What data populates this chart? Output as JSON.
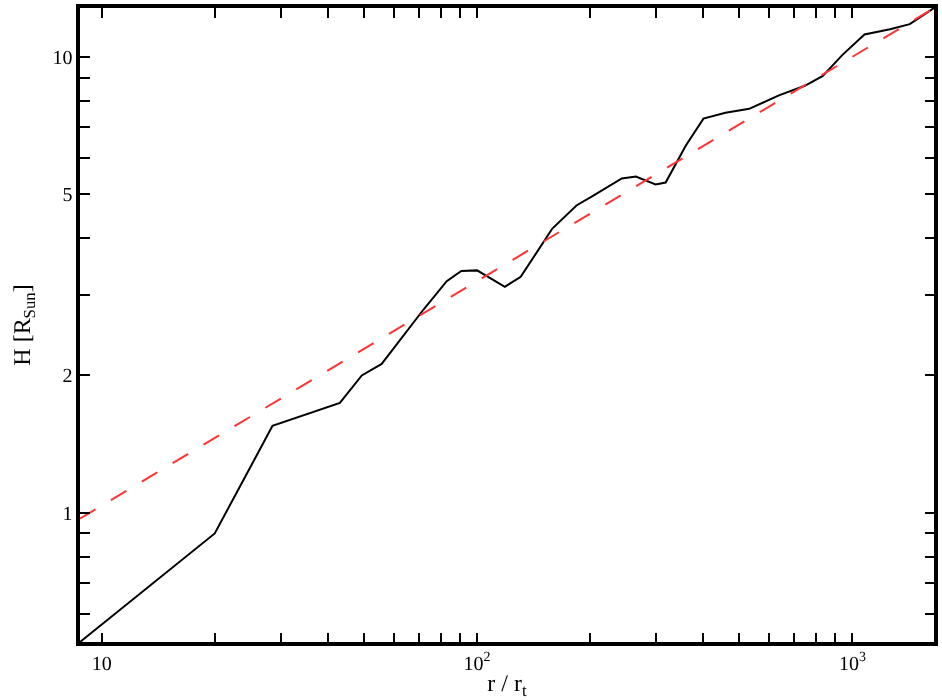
{
  "chart_data": {
    "type": "line",
    "xlabel": "r / r$_{t}$",
    "ylabel": "H [R$_{Sun}$]",
    "log": "xy",
    "marker": "none",
    "xlim": [
      8.75,
      1650
    ],
    "ylim": [
      0.52,
      12.8
    ],
    "xticks": [
      {
        "value": 10,
        "label": "10"
      },
      {
        "value": 20,
        "label": null
      },
      {
        "value": 30,
        "label": null
      },
      {
        "value": 40,
        "label": null
      },
      {
        "value": 50,
        "label": null
      },
      {
        "value": 60,
        "label": null
      },
      {
        "value": 70,
        "label": null
      },
      {
        "value": 80,
        "label": null
      },
      {
        "value": 90,
        "label": null
      },
      {
        "value": 100,
        "label": "10$^{2}$"
      },
      {
        "value": 200,
        "label": null
      },
      {
        "value": 300,
        "label": null
      },
      {
        "value": 400,
        "label": null
      },
      {
        "value": 500,
        "label": null
      },
      {
        "value": 600,
        "label": null
      },
      {
        "value": 700,
        "label": null
      },
      {
        "value": 800,
        "label": null
      },
      {
        "value": 900,
        "label": null
      },
      {
        "value": 1000,
        "label": "10$^{3}$"
      }
    ],
    "yticks": [
      {
        "value": 0.6,
        "label": null
      },
      {
        "value": 0.7,
        "label": null
      },
      {
        "value": 0.8,
        "label": null
      },
      {
        "value": 0.9,
        "label": null
      },
      1,
      2,
      {
        "value": 3,
        "label": null
      },
      {
        "value": 4,
        "label": null
      },
      5,
      {
        "value": 6,
        "label": null
      },
      {
        "value": 7,
        "label": null
      },
      {
        "value": 8,
        "label": null
      },
      {
        "value": 9,
        "label": null
      },
      10
    ],
    "series": [
      {
        "color": "#000000",
        "line_style": "solid",
        "x": [
          8.75,
          20,
          28.5,
          43.1,
          49.3,
          55.7,
          72,
          83,
          90.8,
          100,
          118.6,
          130.7,
          158.7,
          184,
          203,
          243,
          265,
          299,
          318,
          360,
          401,
          459,
          531,
          637,
          747,
          834,
          941,
          1077,
          1260,
          1422,
          1650
        ],
        "values": [
          0.52,
          0.9,
          1.55,
          1.74,
          2.0,
          2.12,
          2.79,
          3.22,
          3.39,
          3.4,
          3.13,
          3.29,
          4.2,
          4.72,
          4.95,
          5.41,
          5.46,
          5.25,
          5.3,
          6.39,
          7.32,
          7.54,
          7.69,
          8.23,
          8.64,
          9.08,
          10.1,
          11.2,
          11.5,
          11.8,
          12.8
        ]
      },
      {
        "color": "#ff3333",
        "line_style": "dashed",
        "x": [
          8.75,
          1650
        ],
        "values": [
          0.97,
          12.8
        ]
      }
    ]
  }
}
